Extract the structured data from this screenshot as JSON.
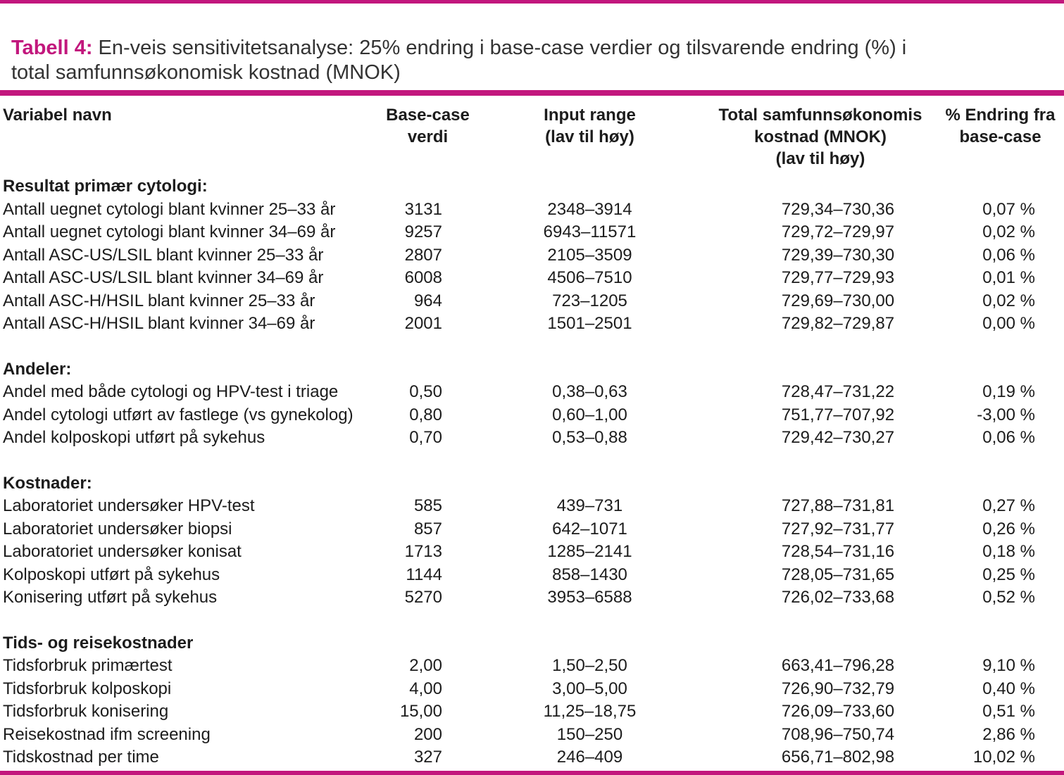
{
  "colors": {
    "accent": "#C2177D",
    "text": "#1c1c1c"
  },
  "title": {
    "prefix": "Tabell 4:",
    "text": " En-veis sensitivitetsanalyse: 25% endring i base-case verdier og tilsvarende endring (%) i\ntotal samfunnsøkonomisk kostnad (MNOK)"
  },
  "table": {
    "columns": [
      {
        "label": "Variabel navn"
      },
      {
        "label": "Base-case\nverdi"
      },
      {
        "label": "Input range\n(lav til høy)"
      },
      {
        "label": "Total samfunnsøkonomis\nkostnad (MNOK)\n(lav til høy)"
      },
      {
        "label": "% Endring fra\nbase-case"
      }
    ],
    "sections": [
      {
        "header": "Resultat primær cytologi:",
        "rows": [
          [
            "Antall uegnet cytologi blant kvinner 25–33 år",
            "3131",
            "2348–3914",
            "729,34–730,36",
            "0,07 %"
          ],
          [
            "Antall uegnet cytologi blant kvinner 34–69 år",
            "9257",
            "6943–11571",
            "729,72–729,97",
            "0,02 %"
          ],
          [
            "Antall ASC-US/LSIL blant kvinner 25–33 år",
            "2807",
            "2105–3509",
            "729,39–730,30",
            "0,06 %"
          ],
          [
            "Antall ASC-US/LSIL blant kvinner 34–69 år",
            "6008",
            "4506–7510",
            "729,77–729,93",
            "0,01 %"
          ],
          [
            "Antall ASC-H/HSIL blant kvinner 25–33 år",
            "964",
            "723–1205",
            "729,69–730,00",
            "0,02 %"
          ],
          [
            "Antall ASC-H/HSIL blant kvinner 34–69 år",
            "2001",
            "1501–2501",
            "729,82–729,87",
            "0,00 %"
          ]
        ]
      },
      {
        "header": "Andeler:",
        "rows": [
          [
            "Andel med både cytologi og HPV-test i triage",
            "0,50",
            "0,38–0,63",
            "728,47–731,22",
            "0,19 %"
          ],
          [
            "Andel cytologi utført av fastlege (vs gynekolog)",
            "0,80",
            "0,60–1,00",
            "751,77–707,92",
            "-3,00 %"
          ],
          [
            "Andel kolposkopi utført på sykehus",
            "0,70",
            "0,53–0,88",
            "729,42–730,27",
            "0,06 %"
          ]
        ]
      },
      {
        "header": "Kostnader:",
        "rows": [
          [
            "Laboratoriet undersøker HPV-test",
            "585",
            "439–731",
            "727,88–731,81",
            "0,27 %"
          ],
          [
            "Laboratoriet undersøker biopsi",
            "857",
            "642–1071",
            "727,92–731,77",
            "0,26 %"
          ],
          [
            "Laboratoriet undersøker konisat",
            "1713",
            "1285–2141",
            "728,54–731,16",
            "0,18 %"
          ],
          [
            "Kolposkopi utført på sykehus",
            "1144",
            "858–1430",
            "728,05–731,65",
            "0,25 %"
          ],
          [
            "Konisering utført på sykehus",
            "5270",
            "3953–6588",
            "726,02–733,68",
            "0,52 %"
          ]
        ]
      },
      {
        "header": "Tids- og reisekostnader",
        "rows": [
          [
            "Tidsforbruk primærtest",
            "2,00",
            "1,50–2,50",
            "663,41–796,28",
            "9,10 %"
          ],
          [
            "Tidsforbruk kolposkopi",
            "4,00",
            "3,00–5,00",
            "726,90–732,79",
            "0,40 %"
          ],
          [
            "Tidsforbruk konisering",
            "15,00",
            "11,25–18,75",
            "726,09–733,60",
            "0,51 %"
          ],
          [
            "Reisekostnad ifm screening",
            "200",
            "150–250",
            "708,96–750,74",
            "2,86 %"
          ],
          [
            "Tidskostnad per time",
            "327",
            "246–409",
            "656,71–802,98",
            "10,02 %"
          ]
        ]
      }
    ]
  }
}
